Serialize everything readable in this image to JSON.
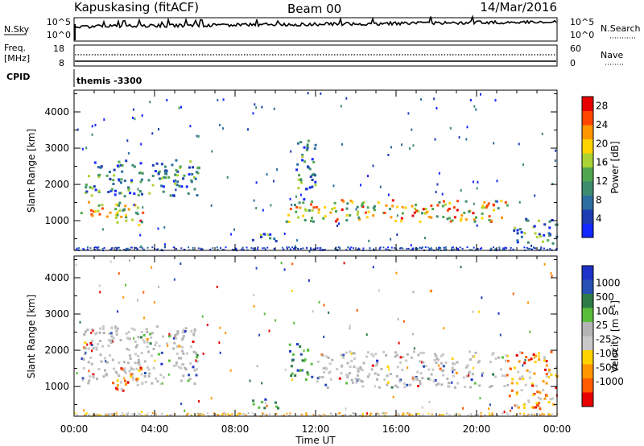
{
  "header": {
    "station": "Kapuskasing (fitACF)",
    "beam": "Beam 00",
    "date": "14/Mar/2016"
  },
  "strips": {
    "nsky_label": "N.Sky",
    "nsky_ticks": [
      "10^5",
      "10^0"
    ],
    "nsearch_label": "N.Search",
    "nsearch_ticks": [
      "10^5",
      "10^0"
    ],
    "freq_label": "Freq.",
    "freq_unit": "[MHz]",
    "freq_ticks": [
      "18",
      "8"
    ],
    "nave_label": "Nave",
    "nave_ticks": [
      "60",
      "0"
    ],
    "cpid_label": "CPID",
    "cpid_value": "themis -3300"
  },
  "colors": {
    "power_scale": [
      "#1428ff",
      "#1e3cb4",
      "#2c6ea0",
      "#3c8c6e",
      "#50a650",
      "#aad232",
      "#ffd200",
      "#ff9600",
      "#ff4600",
      "#e60000"
    ],
    "velocity_scale": [
      "#1e32c8",
      "#2850b4",
      "#2e7a46",
      "#5abe3c",
      "#b4b4b4",
      "#c8c8c8",
      "#ffd200",
      "#ff9600",
      "#ff5a00",
      "#e60000"
    ]
  },
  "chart_data": [
    {
      "type": "heatmap",
      "title": "Power",
      "ylabel": "Slant Range [km]",
      "xlabel": "Time UT",
      "x_ticks": [
        "00:00",
        "04:00",
        "08:00",
        "12:00",
        "16:00",
        "20:00",
        "00:00"
      ],
      "x_range_hours": [
        0,
        24
      ],
      "ylim": [
        180,
        4600
      ],
      "y_ticks": [
        1000,
        2000,
        3000,
        4000
      ],
      "colorbar": {
        "label": "Power [dB]",
        "ticks": [
          4,
          8,
          12,
          16,
          20,
          24,
          28
        ],
        "range": [
          0,
          30
        ]
      },
      "echo_regions": [
        {
          "t_start": 0.3,
          "t_end": 2.5,
          "range_start": 1100,
          "range_end": 1600,
          "level": "high"
        },
        {
          "t_start": 0.5,
          "t_end": 6.2,
          "range_start": 1700,
          "range_end": 2700,
          "level": "medium"
        },
        {
          "t_start": 2.0,
          "t_end": 3.4,
          "range_start": 900,
          "range_end": 1500,
          "level": "high"
        },
        {
          "t_start": 8.8,
          "t_end": 10.2,
          "range_start": 400,
          "range_end": 700,
          "level": "medium"
        },
        {
          "t_start": 10.5,
          "t_end": 21.5,
          "range_start": 1000,
          "range_end": 1600,
          "level": "high"
        },
        {
          "t_start": 11.0,
          "t_end": 12.0,
          "range_start": 1500,
          "range_end": 3300,
          "level": "medium"
        },
        {
          "t_start": 21.8,
          "t_end": 24.0,
          "range_start": 400,
          "range_end": 1100,
          "level": "medium"
        }
      ]
    },
    {
      "type": "heatmap",
      "title": "Velocity",
      "ylabel": "Slant Range [km]",
      "xlabel": "Time UT",
      "x_ticks": [
        "00:00",
        "04:00",
        "08:00",
        "12:00",
        "16:00",
        "20:00",
        "00:00"
      ],
      "x_range_hours": [
        0,
        24
      ],
      "ylim": [
        180,
        4600
      ],
      "y_ticks": [
        1000,
        2000,
        3000,
        4000
      ],
      "colorbar": {
        "label": "Velocity [m s^-1]",
        "ticks": [
          1000,
          500,
          100,
          25,
          -25,
          -100,
          -500,
          -1000
        ]
      },
      "echo_regions": [
        {
          "t_start": 0.3,
          "t_end": 6.2,
          "range_start": 1100,
          "range_end": 2700,
          "level": "near-zero"
        },
        {
          "t_start": 1.8,
          "t_end": 3.4,
          "range_start": 900,
          "range_end": 1600,
          "level": "negative"
        },
        {
          "t_start": 8.8,
          "t_end": 10.2,
          "range_start": 400,
          "range_end": 700,
          "level": "positive"
        },
        {
          "t_start": 10.6,
          "t_end": 11.8,
          "range_start": 1200,
          "range_end": 2200,
          "level": "positive"
        },
        {
          "t_start": 12.0,
          "t_end": 21.5,
          "range_start": 1000,
          "range_end": 2000,
          "level": "near-zero"
        },
        {
          "t_start": 21.5,
          "t_end": 24.0,
          "range_start": 400,
          "range_end": 2000,
          "level": "negative"
        }
      ]
    }
  ]
}
